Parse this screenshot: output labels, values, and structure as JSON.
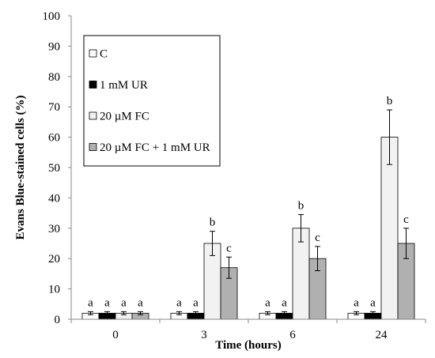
{
  "chart_data": {
    "type": "bar",
    "xlabel": "Time (hours)",
    "ylabel": "Evans Blue-stained cells (%)",
    "ylim": [
      0,
      100
    ],
    "yticks": [
      "0",
      "10",
      "20",
      "30",
      "40",
      "50",
      "60",
      "70",
      "80",
      "90",
      "100"
    ],
    "categories": [
      "0",
      "3",
      "6",
      "24"
    ],
    "grid": false,
    "legend_position": "top-left",
    "series": [
      {
        "name": "C",
        "color": "#ffffff",
        "values": [
          2,
          2,
          2,
          2
        ],
        "errors": [
          0.5,
          0.5,
          0.5,
          0.5
        ],
        "labels": [
          "a",
          "a",
          "a",
          "a"
        ]
      },
      {
        "name": "1 mM UR",
        "color": "#000000",
        "values": [
          2,
          2,
          2,
          2
        ],
        "errors": [
          0.5,
          0.5,
          0.5,
          0.5
        ],
        "labels": [
          "a",
          "a",
          "a",
          "a"
        ]
      },
      {
        "name": "20 µM FC",
        "color": "#f2f2f2",
        "values": [
          2,
          25,
          30,
          60
        ],
        "errors": [
          0.5,
          4,
          4.5,
          9
        ],
        "labels": [
          "a",
          "b",
          "b",
          "b"
        ]
      },
      {
        "name": "20 µM FC + 1 mM UR",
        "color": "#b0b0b0",
        "values": [
          2,
          17,
          20,
          25
        ],
        "errors": [
          0.5,
          3.5,
          4,
          5
        ],
        "labels": [
          "a",
          "c",
          "c",
          "c"
        ]
      }
    ]
  }
}
